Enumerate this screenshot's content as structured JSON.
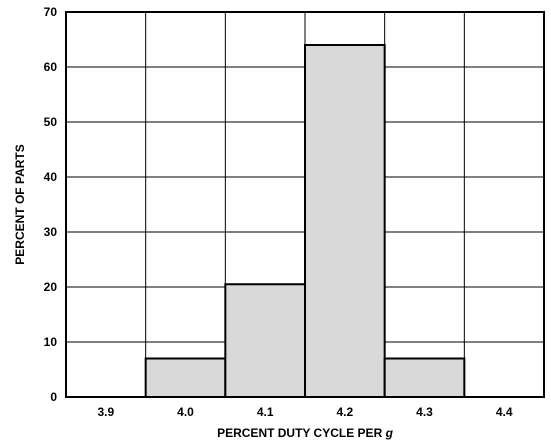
{
  "chart_data": {
    "type": "bar",
    "title": "",
    "xlabel_main": "PERCENT DUTY CYCLE PER ",
    "xlabel_italic": "g",
    "ylabel": "PERCENT OF PARTS",
    "categories": [
      "3.9",
      "4.0",
      "4.1",
      "4.2",
      "4.3",
      "4.4"
    ],
    "values": [
      0,
      7,
      20.5,
      64,
      7,
      0
    ],
    "ylim": [
      0,
      70
    ],
    "yticks": [
      "0",
      "10",
      "20",
      "30",
      "40",
      "50",
      "60",
      "70"
    ],
    "grid": true,
    "bar_color": "#d9d9d9"
  }
}
